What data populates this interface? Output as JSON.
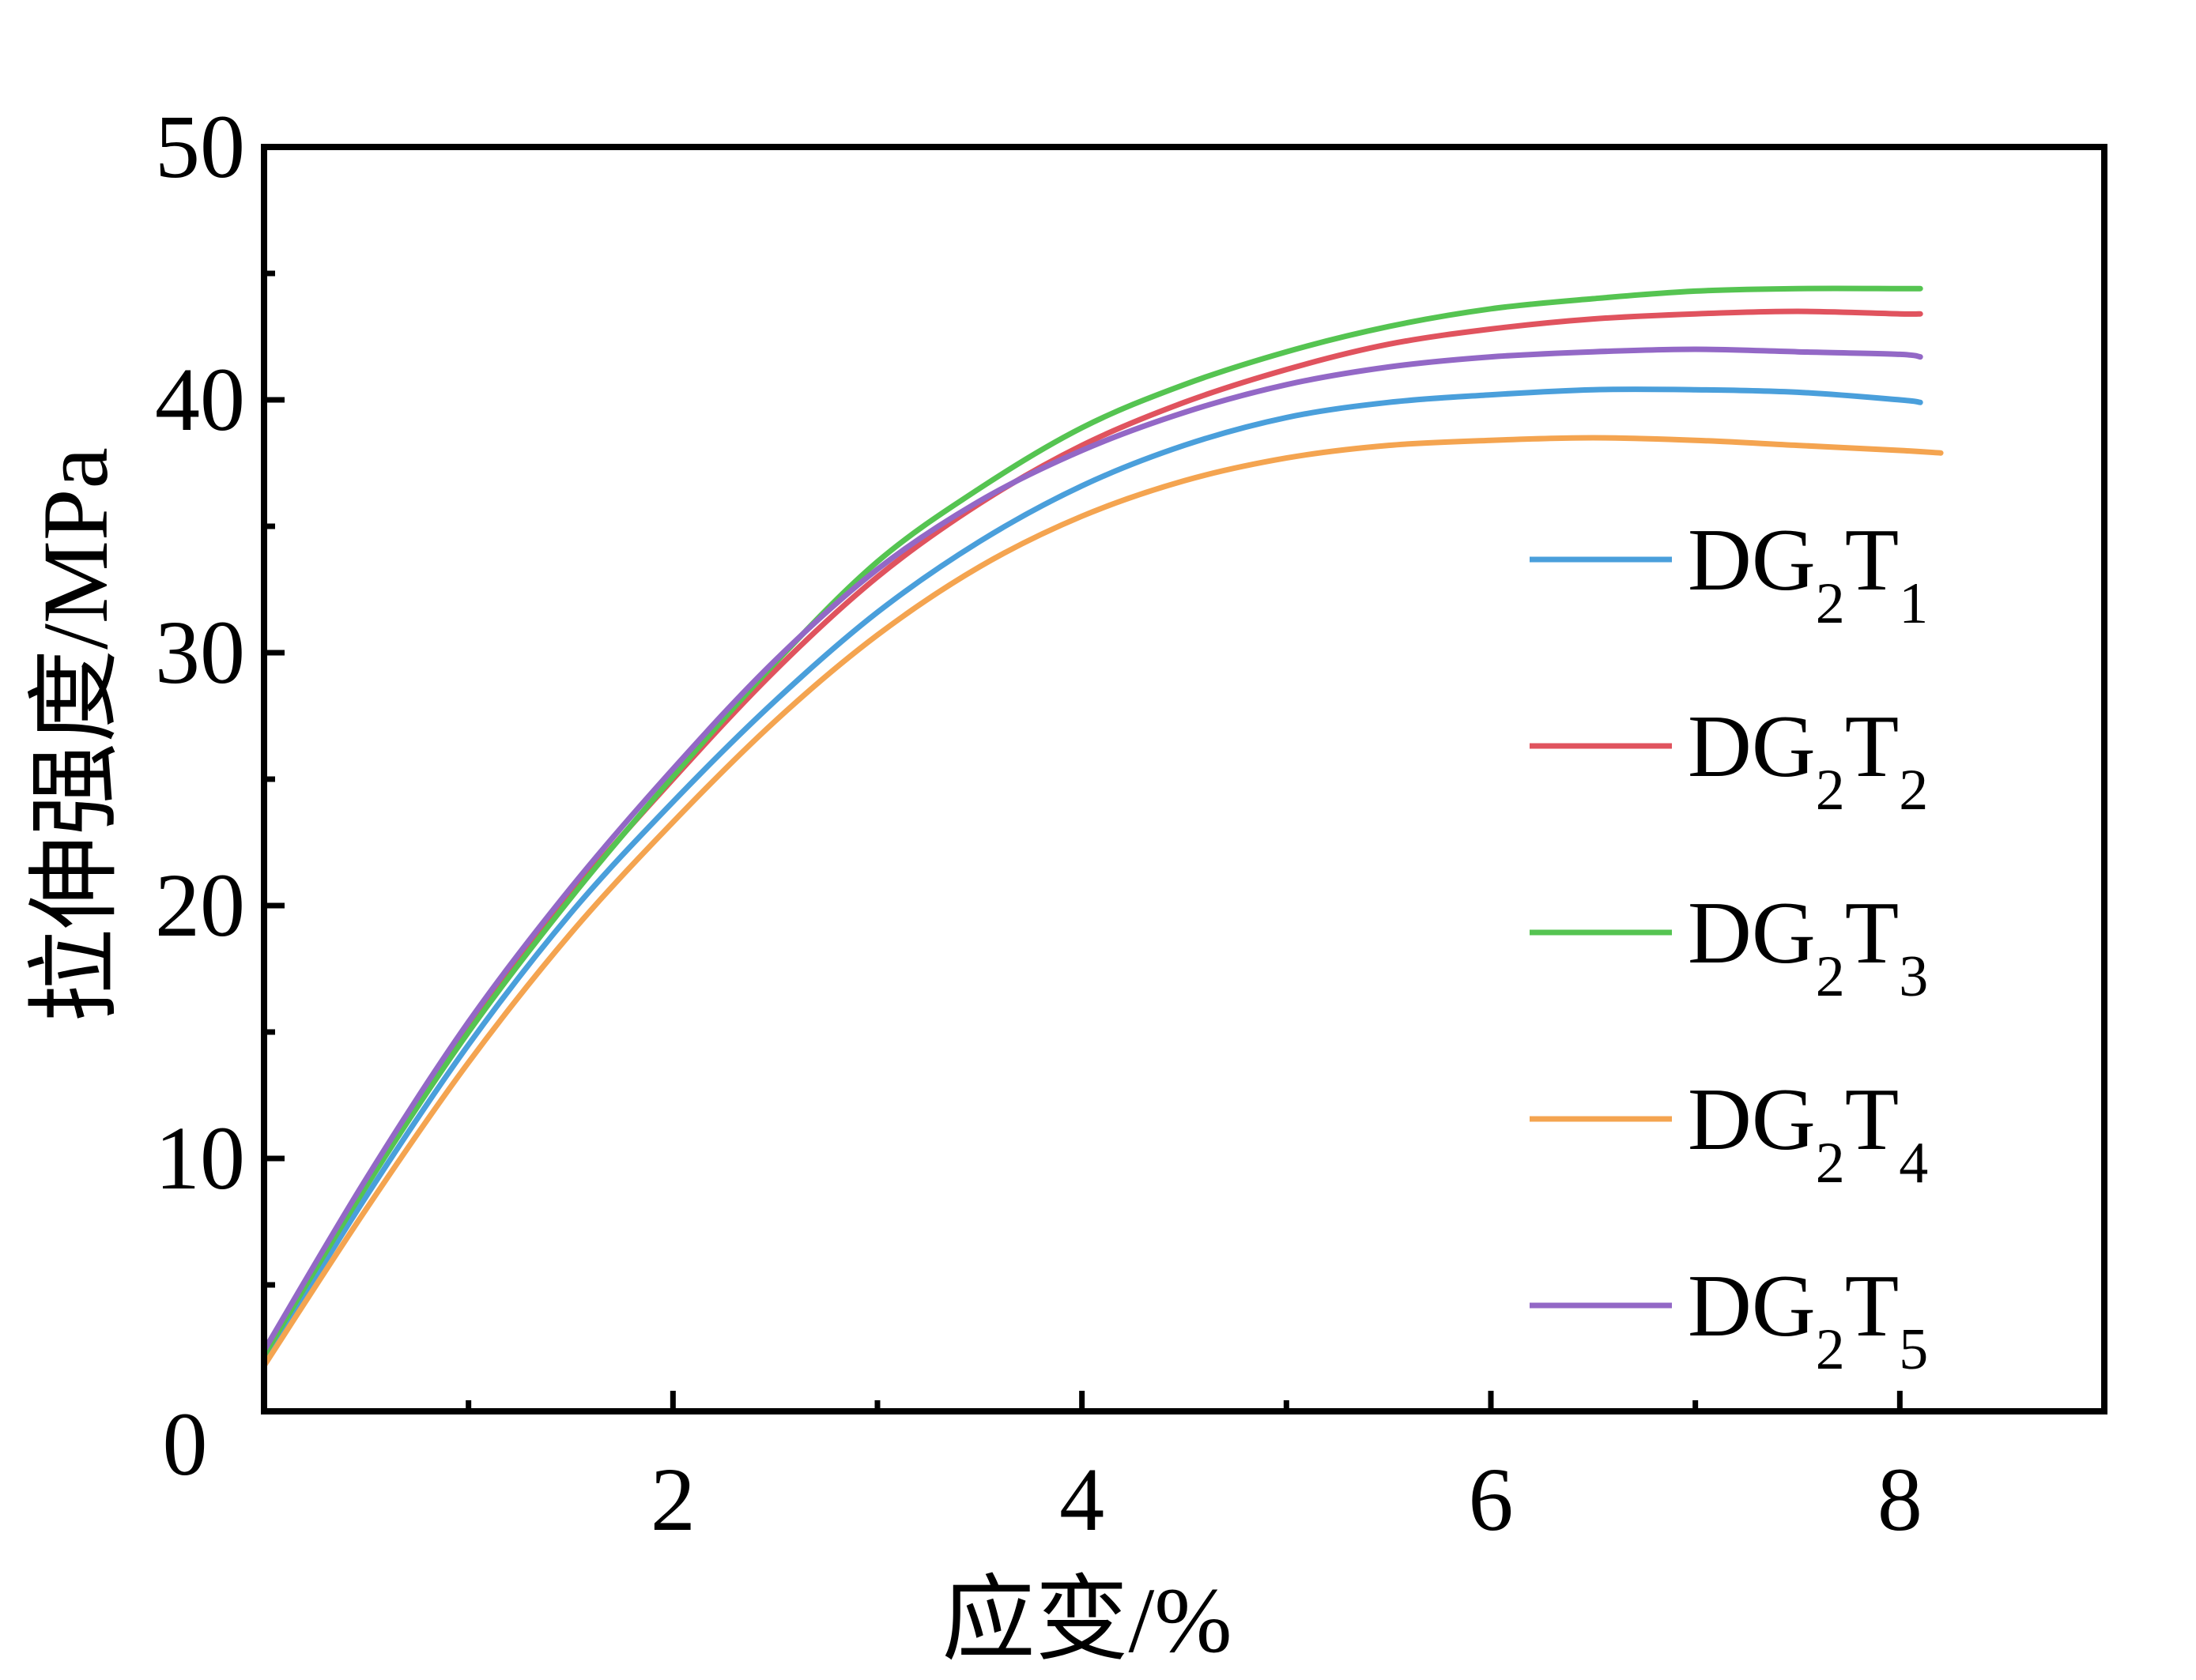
{
  "chart_data": {
    "type": "line",
    "xlabel": "应变/%",
    "ylabel": "拉伸强度/MPa",
    "xlim": [
      0,
      9
    ],
    "ylim": [
      0,
      50
    ],
    "xticks": [
      2,
      4,
      6,
      8
    ],
    "yticks": [
      0,
      10,
      20,
      30,
      40,
      50
    ],
    "grid": false,
    "legend_position": "right",
    "series": [
      {
        "name": "DG2T1",
        "label_main": "DG",
        "label_sub1": "2",
        "label_t": "T",
        "label_sub2": "1",
        "color": "#4a9fdb",
        "x": [
          0,
          0.5,
          1,
          1.5,
          2,
          2.5,
          3,
          3.5,
          4,
          4.5,
          5,
          5.5,
          6,
          6.5,
          7,
          7.5,
          8,
          8.1
        ],
        "y": [
          2,
          8.5,
          14.5,
          19.7,
          24.1,
          28.1,
          31.6,
          34.4,
          36.6,
          38.2,
          39.3,
          39.9,
          40.2,
          40.4,
          40.4,
          40.3,
          40.0,
          39.9
        ]
      },
      {
        "name": "DG2T2",
        "label_main": "DG",
        "label_sub1": "2",
        "label_t": "T",
        "label_sub2": "2",
        "color": "#e0535e",
        "x": [
          0,
          0.5,
          1,
          1.5,
          2,
          2.5,
          3,
          3.5,
          4,
          4.5,
          5,
          5.5,
          6,
          6.5,
          7,
          7.5,
          8,
          8.1
        ],
        "y": [
          2.3,
          9.0,
          15.2,
          20.4,
          25.0,
          29.3,
          33.0,
          35.9,
          38.2,
          39.9,
          41.2,
          42.2,
          42.8,
          43.2,
          43.4,
          43.5,
          43.4,
          43.4
        ]
      },
      {
        "name": "DG2T3",
        "label_main": "DG",
        "label_sub1": "2",
        "label_t": "T",
        "label_sub2": "3",
        "color": "#55c451",
        "x": [
          0,
          0.5,
          1,
          1.5,
          2,
          2.5,
          3,
          3.5,
          4,
          4.5,
          5,
          5.5,
          6,
          6.5,
          7,
          7.5,
          8,
          8.1
        ],
        "y": [
          2.2,
          8.9,
          15.0,
          20.3,
          25.1,
          29.6,
          33.6,
          36.5,
          38.9,
          40.6,
          41.9,
          42.9,
          43.6,
          44.0,
          44.3,
          44.4,
          44.4,
          44.4
        ]
      },
      {
        "name": "DG2T4",
        "label_main": "DG",
        "label_sub1": "2",
        "label_t": "T",
        "label_sub2": "4",
        "color": "#f4a450",
        "x": [
          0,
          0.5,
          1,
          1.5,
          2,
          2.5,
          3,
          3.5,
          4,
          4.5,
          5,
          5.5,
          6,
          6.5,
          7,
          7.5,
          8,
          8.2
        ],
        "y": [
          1.8,
          8.0,
          13.8,
          18.9,
          23.3,
          27.3,
          30.7,
          33.4,
          35.4,
          36.8,
          37.7,
          38.2,
          38.4,
          38.5,
          38.4,
          38.2,
          38.0,
          37.9
        ]
      },
      {
        "name": "DG2T5",
        "label_main": "DG",
        "label_sub1": "2",
        "label_t": "T",
        "label_sub2": "5",
        "color": "#9368c6",
        "x": [
          0,
          0.5,
          1,
          1.5,
          2,
          2.5,
          3,
          3.5,
          4,
          4.5,
          5,
          5.5,
          6,
          6.5,
          7,
          7.5,
          8,
          8.1
        ],
        "y": [
          2.4,
          9.2,
          15.4,
          20.7,
          25.4,
          29.7,
          33.3,
          36.0,
          38.0,
          39.5,
          40.6,
          41.3,
          41.7,
          41.9,
          42.0,
          41.9,
          41.8,
          41.7
        ]
      }
    ]
  }
}
